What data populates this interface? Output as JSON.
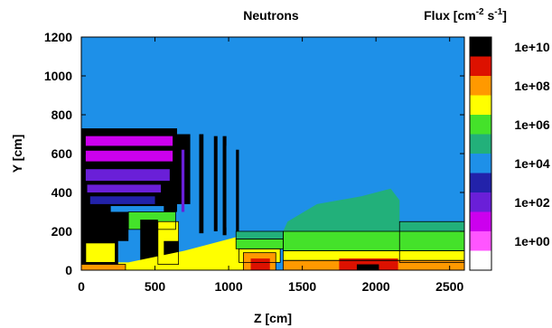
{
  "chart_data": {
    "type": "heatmap",
    "title": "Neutrons",
    "xlabel": "Z [cm]",
    "ylabel": "Y [cm]",
    "xlim": [
      0,
      2600
    ],
    "ylim": [
      0,
      1200
    ],
    "xticks": [
      0,
      500,
      1000,
      1500,
      2000,
      2500
    ],
    "yticks": [
      0,
      200,
      400,
      600,
      800,
      1000,
      1200
    ],
    "colorbar": {
      "label": "Flux [cm-2 s-1]",
      "levels": [
        "1e+10",
        "1e+08",
        "1e+06",
        "1e+04",
        "1e+02",
        "1e+00"
      ],
      "label_exponents": [
        10,
        8,
        6,
        4,
        2,
        0
      ],
      "bands": [
        {
          "from": -1,
          "to": 0,
          "color": "#ffffff"
        },
        {
          "from": 0,
          "to": 1,
          "color": "#ff55ff"
        },
        {
          "from": 1,
          "to": 2,
          "color": "#cc00ee"
        },
        {
          "from": 2,
          "to": 3,
          "color": "#6a1fd8"
        },
        {
          "from": 3,
          "to": 4,
          "color": "#2222aa"
        },
        {
          "from": 4,
          "to": 5,
          "color": "#1e90e8"
        },
        {
          "from": 5,
          "to": 6,
          "color": "#22b07a"
        },
        {
          "from": 6,
          "to": 7,
          "color": "#44e22a"
        },
        {
          "from": 7,
          "to": 8,
          "color": "#ffff00"
        },
        {
          "from": 8,
          "to": 9,
          "color": "#ff9900"
        },
        {
          "from": 9,
          "to": 10,
          "color": "#dd1100"
        },
        {
          "from": 10,
          "to": 11,
          "color": "#000000"
        }
      ]
    },
    "background_level": 4.5,
    "regions": [
      {
        "shape": "rect",
        "z0": 0,
        "z1": 650,
        "y0": 300,
        "y1": 730,
        "level": 10.5
      },
      {
        "shape": "rect",
        "z0": 30,
        "z1": 620,
        "y0": 640,
        "y1": 690,
        "level": 1.5
      },
      {
        "shape": "rect",
        "z0": 30,
        "z1": 620,
        "y0": 560,
        "y1": 615,
        "level": 1.5
      },
      {
        "shape": "rect",
        "z0": 30,
        "z1": 600,
        "y0": 460,
        "y1": 520,
        "level": 2.5
      },
      {
        "shape": "rect",
        "z0": 40,
        "z1": 540,
        "y0": 400,
        "y1": 440,
        "level": 2.5
      },
      {
        "shape": "rect",
        "z0": 60,
        "z1": 500,
        "y0": 340,
        "y1": 380,
        "level": 3.5
      },
      {
        "shape": "rect",
        "z0": 200,
        "z1": 560,
        "y0": 300,
        "y1": 330,
        "level": 4.5
      },
      {
        "shape": "rect",
        "z0": 650,
        "z1": 740,
        "y0": 340,
        "y1": 700,
        "level": 10.5
      },
      {
        "shape": "rect",
        "z0": 680,
        "z1": 700,
        "y0": 300,
        "y1": 620,
        "level": 2.5
      },
      {
        "shape": "rect",
        "z0": 740,
        "z1": 800,
        "y0": 200,
        "y1": 700,
        "level": 4.5
      },
      {
        "shape": "rect",
        "z0": 800,
        "z1": 830,
        "y0": 190,
        "y1": 700,
        "level": 10.5
      },
      {
        "shape": "rect",
        "z0": 830,
        "z1": 900,
        "y0": 180,
        "y1": 700,
        "level": 4.5
      },
      {
        "shape": "rect",
        "z0": 900,
        "z1": 925,
        "y0": 200,
        "y1": 690,
        "level": 10.5
      },
      {
        "shape": "rect",
        "z0": 925,
        "z1": 960,
        "y0": 190,
        "y1": 690,
        "level": 4.5
      },
      {
        "shape": "rect",
        "z0": 960,
        "z1": 985,
        "y0": 180,
        "y1": 690,
        "level": 10.5
      },
      {
        "shape": "rect",
        "z0": 985,
        "z1": 1050,
        "y0": 220,
        "y1": 640,
        "level": 4.5
      },
      {
        "shape": "rect",
        "z0": 1050,
        "z1": 1070,
        "y0": 180,
        "y1": 620,
        "level": 10.5
      },
      {
        "shape": "rect",
        "z0": 0,
        "z1": 320,
        "y0": 150,
        "y1": 300,
        "level": 10.5
      },
      {
        "shape": "rect",
        "z0": 320,
        "z1": 640,
        "y0": 210,
        "y1": 300,
        "level": 6.5
      },
      {
        "shape": "rect",
        "z0": 400,
        "z1": 520,
        "y0": 40,
        "y1": 260,
        "level": 10.5
      },
      {
        "shape": "rect",
        "z0": 520,
        "z1": 660,
        "y0": 30,
        "y1": 250,
        "level": 7.5
      },
      {
        "shape": "rect",
        "z0": 560,
        "z1": 660,
        "y0": 30,
        "y1": 150,
        "level": 10.5
      },
      {
        "shape": "poly",
        "points": [
          [
            0,
            0
          ],
          [
            1100,
            0
          ],
          [
            1100,
            180
          ],
          [
            700,
            100
          ],
          [
            320,
            40
          ],
          [
            0,
            40
          ]
        ],
        "level": 7.5
      },
      {
        "shape": "rect",
        "z0": 0,
        "z1": 250,
        "y0": 20,
        "y1": 160,
        "level": 10.5
      },
      {
        "shape": "rect",
        "z0": 30,
        "z1": 230,
        "y0": 40,
        "y1": 140,
        "level": 7.5
      },
      {
        "shape": "rect",
        "z0": 0,
        "z1": 300,
        "y0": 0,
        "y1": 30,
        "level": 8.5
      },
      {
        "shape": "rect",
        "z0": 1050,
        "z1": 1370,
        "y0": 160,
        "y1": 200,
        "level": 5.5
      },
      {
        "shape": "rect",
        "z0": 1050,
        "z1": 1370,
        "y0": 110,
        "y1": 160,
        "level": 6.5
      },
      {
        "shape": "rect",
        "z0": 1070,
        "z1": 1350,
        "y0": 40,
        "y1": 110,
        "level": 7.5
      },
      {
        "shape": "rect",
        "z0": 1100,
        "z1": 1320,
        "y0": 0,
        "y1": 90,
        "level": 8.5
      },
      {
        "shape": "rect",
        "z0": 1150,
        "z1": 1280,
        "y0": 0,
        "y1": 60,
        "level": 9.5
      },
      {
        "shape": "poly",
        "points": [
          [
            1370,
            200
          ],
          [
            1400,
            250
          ],
          [
            1600,
            340
          ],
          [
            1900,
            380
          ],
          [
            2100,
            420
          ],
          [
            2160,
            360
          ],
          [
            2160,
            200
          ]
        ],
        "level": 5.5
      },
      {
        "shape": "rect",
        "z0": 2160,
        "z1": 2600,
        "y0": 40,
        "y1": 250,
        "level": 5.5
      },
      {
        "shape": "rect",
        "z0": 1370,
        "z1": 2600,
        "y0": 100,
        "y1": 200,
        "level": 6.5
      },
      {
        "shape": "rect",
        "z0": 1370,
        "z1": 2600,
        "y0": 50,
        "y1": 100,
        "level": 7.5
      },
      {
        "shape": "rect",
        "z0": 1370,
        "z1": 2600,
        "y0": 0,
        "y1": 50,
        "level": 8.5
      },
      {
        "shape": "rect",
        "z0": 1750,
        "z1": 2150,
        "y0": 0,
        "y1": 60,
        "level": 9.5
      },
      {
        "shape": "rect",
        "z0": 1870,
        "z1": 2020,
        "y0": 0,
        "y1": 30,
        "level": 10.5
      }
    ]
  }
}
